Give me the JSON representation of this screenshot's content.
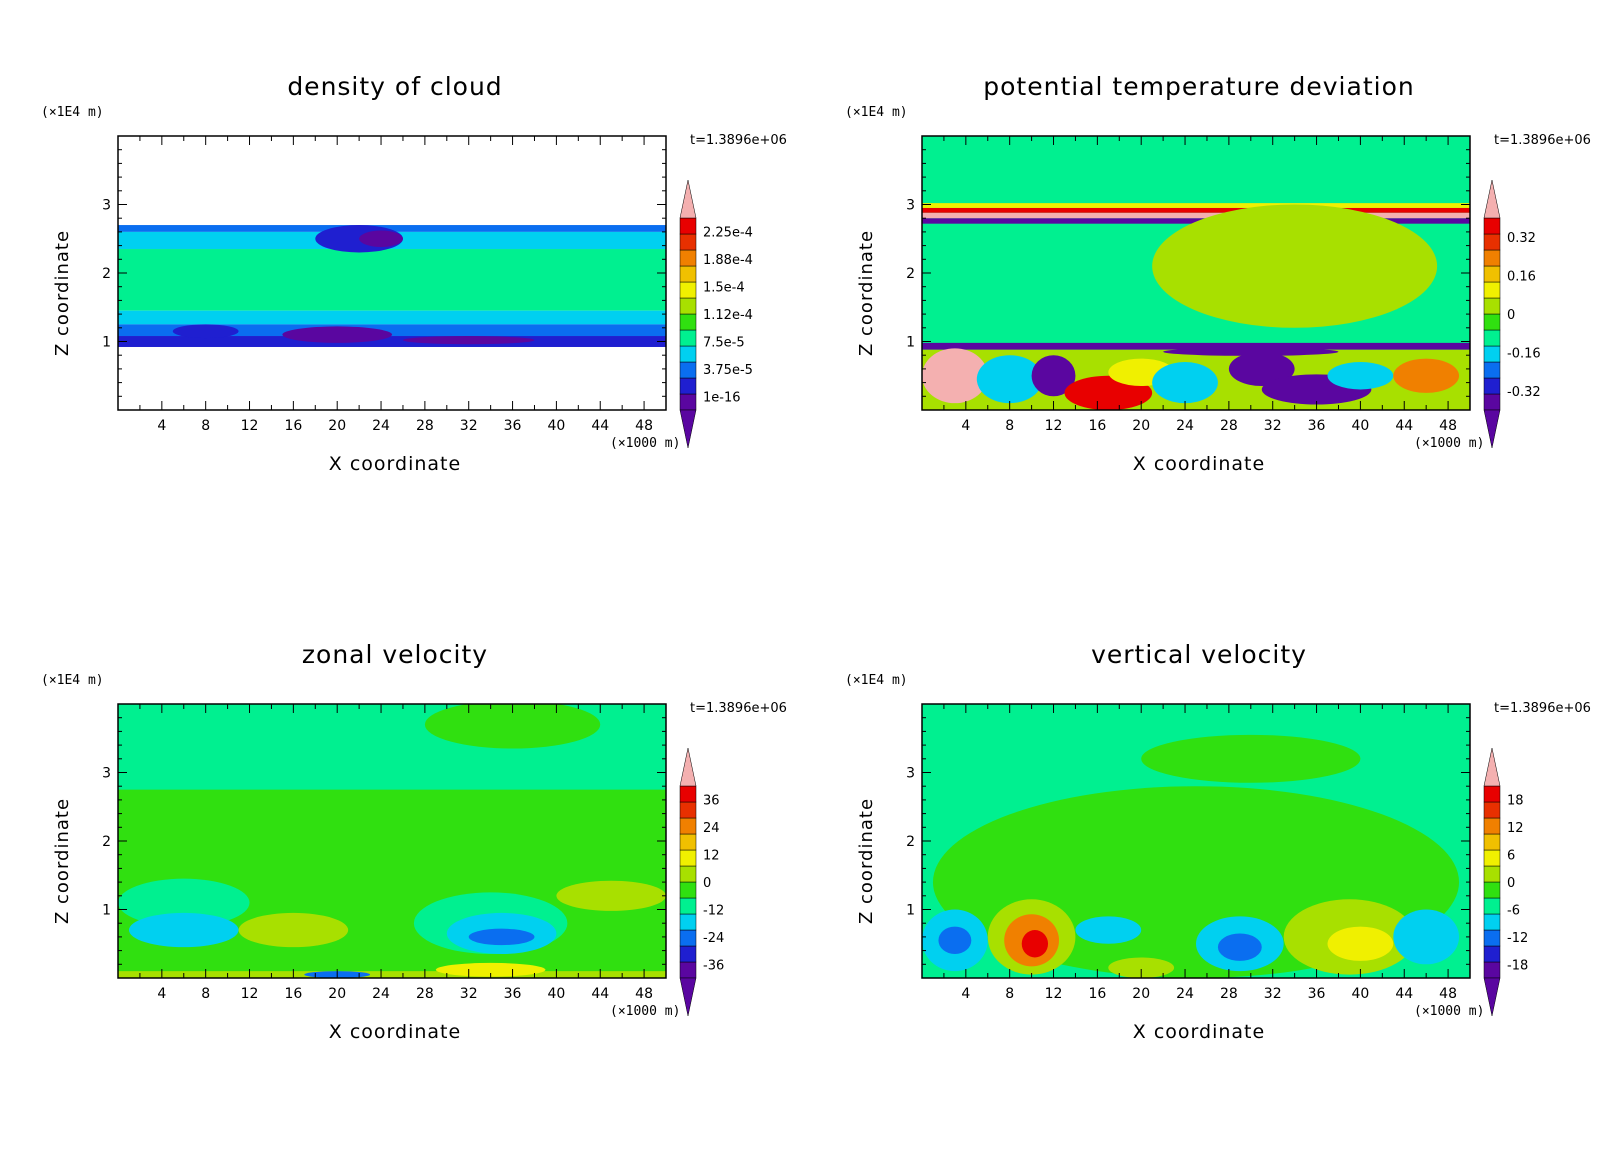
{
  "xlabel": "X coordinate",
  "ylabel": "Z coordinate",
  "x_scale_note": "(×1000 m)",
  "y_scale_note": "(×1E4 m)",
  "time_label": "t=1.3896e+06",
  "x_ticks": [
    "4",
    "8",
    "12",
    "16",
    "20",
    "24",
    "28",
    "32",
    "36",
    "40",
    "44",
    "48"
  ],
  "y_ticks": [
    "1",
    "2",
    "3"
  ],
  "palette": [
    "#5a06a0",
    "#1f1fd0",
    "#0a6ef0",
    "#00d0f0",
    "#00f090",
    "#30e010",
    "#a8e000",
    "#f0f000",
    "#f0c000",
    "#f08000",
    "#e83000",
    "#e80000",
    "#f4b0b0"
  ],
  "chart_data": [
    {
      "type": "heatmap",
      "title": "density of cloud",
      "xlabel": "X coordinate",
      "ylabel": "Z coordinate",
      "x_unit": "(×1000 m)",
      "y_unit": "(×1E4 m)",
      "xlim": [
        0,
        50
      ],
      "ylim": [
        0,
        4
      ],
      "colorbar_labels": [
        "2.25e-4",
        "1.88e-4",
        "1.5e-4",
        "1.12e-4",
        "7.5e-5",
        "3.75e-5",
        "1e-16"
      ],
      "colorbar_values": [
        0.000225,
        0.000188,
        0.00015,
        0.000112,
        7.5e-05,
        3.75e-05,
        1e-16
      ],
      "time": "t=1.3896e+06",
      "background": "#ffffff",
      "bands": [
        {
          "z0": 2.6,
          "z1": 2.7,
          "color": "#0a6ef0"
        },
        {
          "z0": 2.35,
          "z1": 2.6,
          "color": "#00d0f0"
        },
        {
          "z0": 1.45,
          "z1": 2.35,
          "color": "#00f090"
        },
        {
          "z0": 1.25,
          "z1": 1.45,
          "color": "#00d0f0"
        },
        {
          "z0": 1.08,
          "z1": 1.25,
          "color": "#0a6ef0"
        },
        {
          "z0": 0.92,
          "z1": 1.08,
          "color": "#1f1fd0"
        }
      ],
      "blobs": [
        {
          "x": 22,
          "z": 2.5,
          "rx": 4,
          "rz": 0.2,
          "color": "#1f1fd0"
        },
        {
          "x": 24,
          "z": 2.5,
          "rx": 2,
          "rz": 0.12,
          "color": "#5a06a0"
        },
        {
          "x": 20,
          "z": 1.1,
          "rx": 5,
          "rz": 0.12,
          "color": "#5a06a0"
        },
        {
          "x": 8,
          "z": 1.15,
          "rx": 3,
          "rz": 0.1,
          "color": "#1f1fd0"
        },
        {
          "x": 32,
          "z": 1.02,
          "rx": 6,
          "rz": 0.06,
          "color": "#5a06a0"
        }
      ]
    },
    {
      "type": "heatmap",
      "title": "potential temperature deviation",
      "xlabel": "X coordinate",
      "ylabel": "Z coordinate",
      "x_unit": "(×1000 m)",
      "y_unit": "(×1E4 m)",
      "xlim": [
        0,
        50
      ],
      "ylim": [
        0,
        4
      ],
      "colorbar_labels": [
        "0.32",
        "0.16",
        "0",
        "-0.16",
        "-0.32"
      ],
      "colorbar_values": [
        0.32,
        0.16,
        0,
        -0.16,
        -0.32
      ],
      "time": "t=1.3896e+06",
      "background": "#00f090",
      "bands": [
        {
          "z0": 2.72,
          "z1": 2.8,
          "color": "#5a06a0"
        },
        {
          "z0": 2.8,
          "z1": 2.88,
          "color": "#f4b0b0"
        },
        {
          "z0": 2.88,
          "z1": 2.95,
          "color": "#e80000"
        },
        {
          "z0": 2.95,
          "z1": 3.02,
          "color": "#f0f000"
        },
        {
          "z0": 0.88,
          "z1": 0.98,
          "color": "#5a06a0"
        },
        {
          "z0": 0,
          "z1": 0.88,
          "color": "#a8e000"
        }
      ],
      "blobs": [
        {
          "x": 34,
          "z": 2.1,
          "rx": 13,
          "rz": 0.9,
          "color": "#a8e000"
        },
        {
          "x": 3,
          "z": 0.5,
          "rx": 3,
          "rz": 0.4,
          "color": "#f4b0b0"
        },
        {
          "x": 8,
          "z": 0.45,
          "rx": 3,
          "rz": 0.35,
          "color": "#00d0f0"
        },
        {
          "x": 12,
          "z": 0.5,
          "rx": 2,
          "rz": 0.3,
          "color": "#5a06a0"
        },
        {
          "x": 17,
          "z": 0.25,
          "rx": 4,
          "rz": 0.25,
          "color": "#e80000"
        },
        {
          "x": 20,
          "z": 0.55,
          "rx": 3,
          "rz": 0.2,
          "color": "#f0f000"
        },
        {
          "x": 24,
          "z": 0.4,
          "rx": 3,
          "rz": 0.3,
          "color": "#00d0f0"
        },
        {
          "x": 31,
          "z": 0.6,
          "rx": 3,
          "rz": 0.25,
          "color": "#5a06a0"
        },
        {
          "x": 36,
          "z": 0.3,
          "rx": 5,
          "rz": 0.22,
          "color": "#5a06a0"
        },
        {
          "x": 40,
          "z": 0.5,
          "rx": 3,
          "rz": 0.2,
          "color": "#00d0f0"
        },
        {
          "x": 46,
          "z": 0.5,
          "rx": 3,
          "rz": 0.25,
          "color": "#f08000"
        },
        {
          "x": 30,
          "z": 0.85,
          "rx": 8,
          "rz": 0.06,
          "color": "#5a06a0"
        }
      ]
    },
    {
      "type": "heatmap",
      "title": "zonal velocity",
      "xlabel": "X coordinate",
      "ylabel": "Z coordinate",
      "x_unit": "(×1000 m)",
      "y_unit": "(×1E4 m)",
      "xlim": [
        0,
        50
      ],
      "ylim": [
        0,
        4
      ],
      "colorbar_labels": [
        "36",
        "24",
        "12",
        "0",
        "-12",
        "-24",
        "-36"
      ],
      "colorbar_values": [
        36,
        24,
        12,
        0,
        -12,
        -24,
        -36
      ],
      "time": "t=1.3896e+06",
      "background": "#30e010",
      "bands": [
        {
          "z0": 2.75,
          "z1": 4,
          "color": "#00f090"
        },
        {
          "z0": 0,
          "z1": 0.1,
          "color": "#a8e000"
        }
      ],
      "blobs": [
        {
          "x": 36,
          "z": 3.7,
          "rx": 8,
          "rz": 0.35,
          "color": "#30e010"
        },
        {
          "x": 6,
          "z": 1.1,
          "rx": 6,
          "rz": 0.35,
          "color": "#00f090"
        },
        {
          "x": 6,
          "z": 0.7,
          "rx": 5,
          "rz": 0.25,
          "color": "#00d0f0"
        },
        {
          "x": 16,
          "z": 0.7,
          "rx": 5,
          "rz": 0.25,
          "color": "#a8e000"
        },
        {
          "x": 34,
          "z": 0.8,
          "rx": 7,
          "rz": 0.45,
          "color": "#00f090"
        },
        {
          "x": 35,
          "z": 0.65,
          "rx": 5,
          "rz": 0.3,
          "color": "#00d0f0"
        },
        {
          "x": 35,
          "z": 0.6,
          "rx": 3,
          "rz": 0.12,
          "color": "#0a6ef0"
        },
        {
          "x": 45,
          "z": 1.2,
          "rx": 5,
          "rz": 0.22,
          "color": "#a8e000"
        },
        {
          "x": 34,
          "z": 0.12,
          "rx": 5,
          "rz": 0.1,
          "color": "#f0f000"
        },
        {
          "x": 20,
          "z": 0.05,
          "rx": 3,
          "rz": 0.05,
          "color": "#0a6ef0"
        }
      ]
    },
    {
      "type": "heatmap",
      "title": "vertical velocity",
      "xlabel": "X coordinate",
      "ylabel": "Z coordinate",
      "x_unit": "(×1000 m)",
      "y_unit": "(×1E4 m)",
      "xlim": [
        0,
        50
      ],
      "ylim": [
        0,
        4
      ],
      "colorbar_labels": [
        "18",
        "12",
        "6",
        "0",
        "-6",
        "-12",
        "-18"
      ],
      "colorbar_values": [
        18,
        12,
        6,
        0,
        -6,
        -12,
        -18
      ],
      "time": "t=1.3896e+06",
      "background": "#00f090",
      "bands": [],
      "blobs": [
        {
          "x": 25,
          "z": 1.4,
          "rx": 24,
          "rz": 1.4,
          "color": "#30e010"
        },
        {
          "x": 30,
          "z": 3.2,
          "rx": 10,
          "rz": 0.35,
          "color": "#30e010"
        },
        {
          "x": 10,
          "z": 0.6,
          "rx": 4,
          "rz": 0.55,
          "color": "#a8e000"
        },
        {
          "x": 10,
          "z": 0.55,
          "rx": 2.5,
          "rz": 0.38,
          "color": "#f08000"
        },
        {
          "x": 10.3,
          "z": 0.5,
          "rx": 1.2,
          "rz": 0.2,
          "color": "#e80000"
        },
        {
          "x": 39,
          "z": 0.6,
          "rx": 6,
          "rz": 0.55,
          "color": "#a8e000"
        },
        {
          "x": 40,
          "z": 0.5,
          "rx": 3,
          "rz": 0.25,
          "color": "#f0f000"
        },
        {
          "x": 3,
          "z": 0.55,
          "rx": 3,
          "rz": 0.45,
          "color": "#00d0f0"
        },
        {
          "x": 3,
          "z": 0.55,
          "rx": 1.5,
          "rz": 0.2,
          "color": "#0a6ef0"
        },
        {
          "x": 29,
          "z": 0.5,
          "rx": 4,
          "rz": 0.4,
          "color": "#00d0f0"
        },
        {
          "x": 29,
          "z": 0.45,
          "rx": 2,
          "rz": 0.2,
          "color": "#0a6ef0"
        },
        {
          "x": 46,
          "z": 0.6,
          "rx": 3,
          "rz": 0.4,
          "color": "#00d0f0"
        },
        {
          "x": 17,
          "z": 0.7,
          "rx": 3,
          "rz": 0.2,
          "color": "#00d0f0"
        },
        {
          "x": 20,
          "z": 0.15,
          "rx": 3,
          "rz": 0.15,
          "color": "#a8e000"
        }
      ]
    }
  ]
}
